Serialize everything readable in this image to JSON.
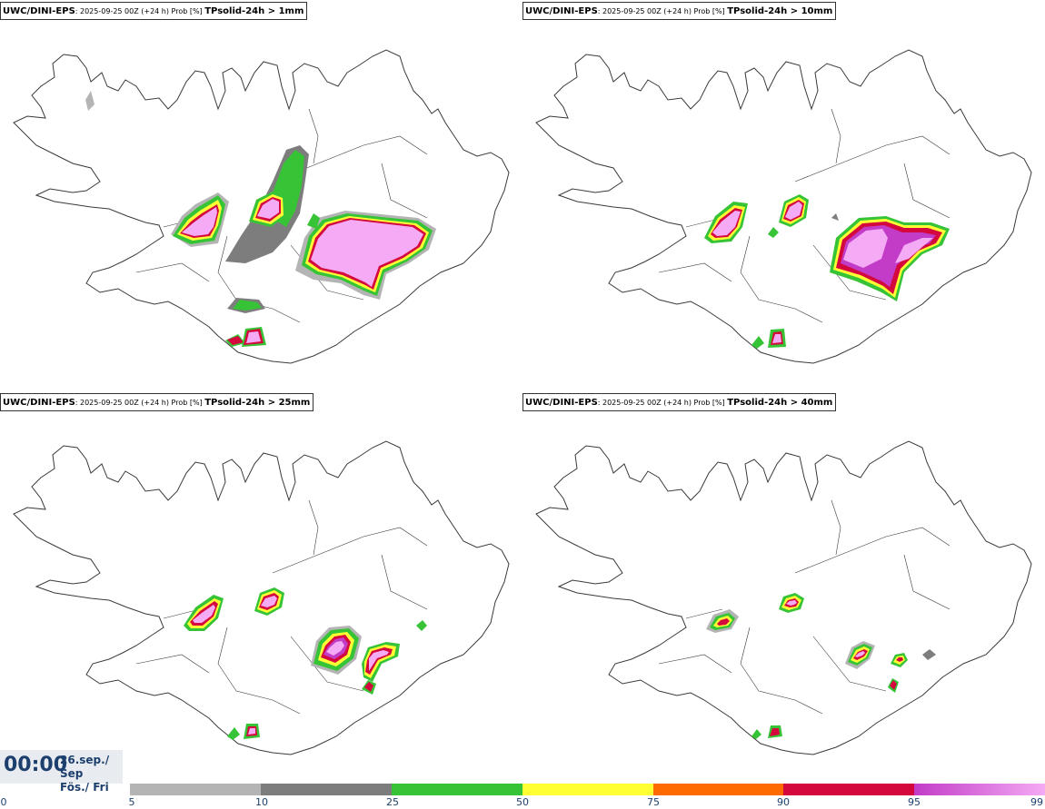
{
  "panels": [
    {
      "model": "UWC/DINI-EPS",
      "meta": ": 2025-09-25 00Z (+24 h) Prob [%] ",
      "variable": "TPsolid-24h > 1mm"
    },
    {
      "model": "UWC/DINI-EPS",
      "meta": ": 2025-09-25 00Z (+24 h) Prob [%] ",
      "variable": "TPsolid-24h > 10mm"
    },
    {
      "model": "UWC/DINI-EPS",
      "meta": ": 2025-09-25 00Z (+24 h) Prob [%] ",
      "variable": "TPsolid-24h > 25mm"
    },
    {
      "model": "UWC/DINI-EPS",
      "meta": ": 2025-09-25 00Z (+24 h) Prob [%] ",
      "variable": "TPsolid-24h > 40mm"
    }
  ],
  "time": {
    "clock": "00:00",
    "date_line1": "26.sep./ Sep",
    "date_line2": "Fös./ Fri"
  },
  "colorbar": {
    "labels": [
      "0",
      "5",
      "10",
      "25",
      "50",
      "75",
      "90",
      "95",
      "99"
    ],
    "colors": [
      "#b4b4b4",
      "#7d7d7d",
      "#36c436",
      "#ffff33",
      "#ff6a00",
      "#d4083c",
      "#c23cc7",
      "#f4aaf4"
    ]
  },
  "map_colors": {
    "coast": "#3a3a3a",
    "prob_light_grey": "#b4b4b4",
    "prob_dark_grey": "#7d7d7d",
    "prob_green": "#36c436",
    "prob_yellow": "#ffff33",
    "prob_red": "#d4083c",
    "prob_pink": "#f4aaf4"
  }
}
